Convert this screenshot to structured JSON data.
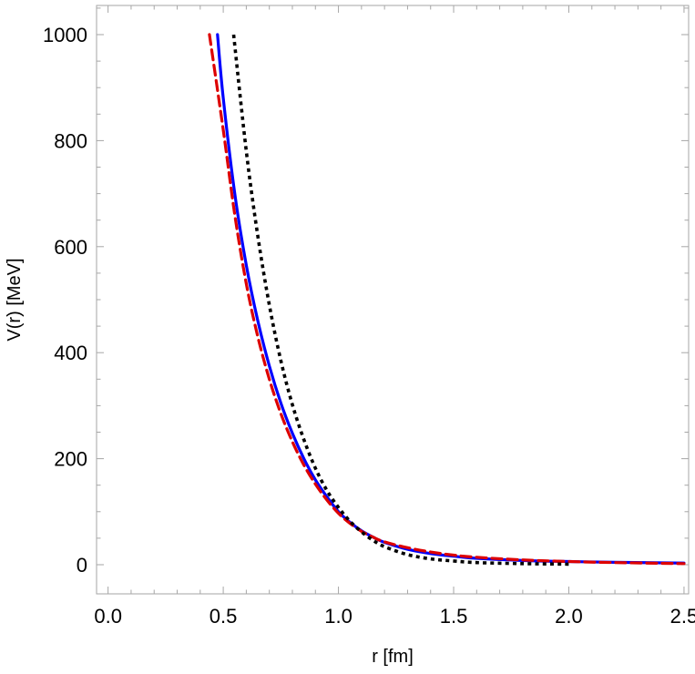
{
  "chart_data": {
    "type": "line",
    "title": "",
    "xlabel": "r [fm]",
    "ylabel": "V(r) [MeV]",
    "xlim": [
      -0.05,
      2.52
    ],
    "ylim": [
      -55,
      1055
    ],
    "xticks": [
      0.0,
      0.5,
      1.0,
      1.5,
      2.0,
      2.5
    ],
    "xtick_labels": [
      "0.0",
      "0.5",
      "1.0",
      "1.5",
      "2.0",
      "2.5"
    ],
    "yticks": [
      0,
      200,
      400,
      600,
      800,
      1000
    ],
    "ytick_labels": [
      "0",
      "200",
      "400",
      "600",
      "800",
      "1000"
    ],
    "grid": false,
    "legend": "none",
    "series": [
      {
        "color": "#0000ff",
        "style": "solid",
        "x": [
          0.475,
          0.5,
          0.55,
          0.6,
          0.65,
          0.7,
          0.75,
          0.8,
          0.85,
          0.9,
          0.95,
          1.0,
          1.05,
          1.1,
          1.15,
          1.2,
          1.3,
          1.4,
          1.5,
          1.6,
          1.8,
          2.0,
          2.2,
          2.5
        ],
        "y": [
          1000,
          880,
          700,
          565,
          460,
          375,
          305,
          248,
          200,
          160,
          128,
          100,
          80,
          64,
          52,
          42,
          29,
          21,
          16,
          12,
          8,
          6,
          4.5,
          3
        ]
      },
      {
        "color": "#dd0000",
        "style": "dashed",
        "x": [
          0.44,
          0.5,
          0.55,
          0.6,
          0.65,
          0.7,
          0.75,
          0.8,
          0.85,
          0.9,
          0.95,
          1.0,
          1.05,
          1.1,
          1.15,
          1.2,
          1.3,
          1.4,
          1.5,
          1.6,
          1.8,
          2.0,
          2.2,
          2.5
        ],
        "y": [
          1000,
          820,
          660,
          530,
          430,
          350,
          285,
          232,
          188,
          152,
          122,
          97,
          78,
          63,
          52,
          43,
          32,
          24,
          18,
          14,
          9,
          6,
          4,
          2
        ]
      },
      {
        "color": "#000000",
        "style": "dotted",
        "x": [
          0.545,
          0.6,
          0.65,
          0.7,
          0.75,
          0.8,
          0.85,
          0.9,
          0.95,
          1.0,
          1.05,
          1.1,
          1.15,
          1.2,
          1.3,
          1.4,
          1.5,
          1.6,
          1.8,
          2.0
        ],
        "y": [
          1000,
          780,
          620,
          490,
          385,
          302,
          236,
          182,
          140,
          108,
          82,
          62,
          46,
          34,
          19,
          11,
          7,
          4,
          2,
          1
        ]
      }
    ]
  }
}
